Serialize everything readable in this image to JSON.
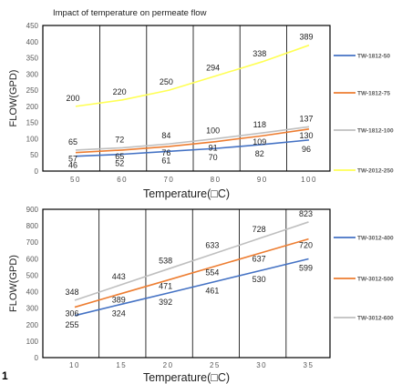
{
  "figure_number": "1",
  "chart_data": [
    {
      "type": "line",
      "title": "Impact of temperature on permeate flow",
      "xlabel": "Temperature(□C)",
      "ylabel": "FLOW(GPD)",
      "x": [
        50,
        60,
        70,
        80,
        90,
        100
      ],
      "x_tick_labels": [
        "50",
        "60",
        "70",
        "80",
        "90",
        "100"
      ],
      "y_ticks": [
        0,
        50,
        100,
        150,
        200,
        250,
        300,
        350,
        400,
        450
      ],
      "ylim": [
        0,
        450
      ],
      "vertical_grid": true,
      "horizontal_grid": false,
      "legend_position": "right",
      "series": [
        {
          "name": "TW-1812-50",
          "color": "#4472c4",
          "values": [
            46,
            52,
            61,
            70,
            82,
            96
          ],
          "labels": [
            "46",
            "52",
            "61",
            "70",
            "82",
            "96"
          ]
        },
        {
          "name": "TW-1812-75",
          "color": "#ed7d31",
          "values": [
            57,
            65,
            76,
            91,
            109,
            130
          ],
          "labels": [
            "57",
            "65",
            "76",
            "91",
            "109",
            "130"
          ]
        },
        {
          "name": "TW-1812-100",
          "color": "#bfbfbf",
          "values": [
            65,
            72,
            84,
            100,
            118,
            137
          ],
          "labels": [
            "65",
            "72",
            "84",
            "100",
            "118",
            "137"
          ]
        },
        {
          "name": "TW-2012-250",
          "color": "#ffff55",
          "values": [
            200,
            220,
            250,
            294,
            338,
            389
          ],
          "labels": [
            "200",
            "220",
            "250",
            "294",
            "338",
            "389"
          ]
        }
      ]
    },
    {
      "type": "line",
      "title": "",
      "xlabel": "Temperature(□C)",
      "ylabel": "FLOW(GPD)",
      "x": [
        10,
        15,
        20,
        25,
        30,
        35
      ],
      "x_tick_labels": [
        "10",
        "15",
        "20",
        "25",
        "30",
        "35"
      ],
      "y_ticks": [
        0,
        100,
        200,
        300,
        400,
        500,
        600,
        700,
        800,
        900
      ],
      "ylim": [
        0,
        900
      ],
      "vertical_grid": true,
      "horizontal_grid": false,
      "legend_position": "right",
      "series": [
        {
          "name": "TW-3012-400",
          "color": "#4472c4",
          "values": [
            255,
            324,
            392,
            461,
            530,
            599
          ],
          "labels": [
            "255",
            "324",
            "392",
            "461",
            "530",
            "599"
          ]
        },
        {
          "name": "TW-3012-500",
          "color": "#ed7d31",
          "values": [
            306,
            389,
            471,
            554,
            637,
            720
          ],
          "labels": [
            "306",
            "389",
            "471",
            "554",
            "637",
            "720"
          ]
        },
        {
          "name": "TW-3012-600",
          "color": "#bfbfbf",
          "values": [
            348,
            443,
            538,
            633,
            728,
            823
          ],
          "labels": [
            "348",
            "443",
            "538",
            "633",
            "728",
            "823"
          ]
        }
      ]
    }
  ]
}
